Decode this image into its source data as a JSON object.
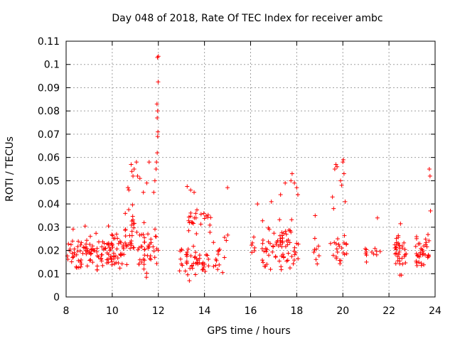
{
  "chart_data": {
    "type": "scatter",
    "title": "Day 048 of 2018, Rate Of TEC Index for receiver ambc",
    "xlabel": "GPS time / hours",
    "ylabel": "ROTI / TECUs",
    "xlim": [
      8,
      24
    ],
    "ylim": [
      0,
      0.11
    ],
    "xticks": [
      8,
      10,
      12,
      14,
      16,
      18,
      20,
      22,
      24
    ],
    "yticks": [
      0,
      0.01,
      0.02,
      0.03,
      0.04,
      0.05,
      0.06,
      0.07,
      0.08,
      0.09,
      0.1,
      0.11
    ],
    "grid": true,
    "marker": "plus",
    "series_color": "#ff0000",
    "clusters": [
      {
        "x": [
          8.05,
          10.55
        ],
        "y": [
          0.006,
          0.033
        ],
        "density": 130
      },
      {
        "x": [
          10.55,
          11.0
        ],
        "y": [
          0.008,
          0.047
        ],
        "density": 28
      },
      {
        "x": [
          11.05,
          12.0
        ],
        "y": [
          0.005,
          0.035
        ],
        "density": 45
      },
      {
        "x": [
          12.9,
          14.05
        ],
        "y": [
          0.005,
          0.025
        ],
        "density": 45
      },
      {
        "x": [
          13.2,
          14.3
        ],
        "y": [
          0.025,
          0.04
        ],
        "density": 25
      },
      {
        "x": [
          14.0,
          15.05
        ],
        "y": [
          0.006,
          0.03
        ],
        "density": 20
      },
      {
        "x": [
          16.0,
          16.25
        ],
        "y": [
          0.015,
          0.03
        ],
        "density": 6
      },
      {
        "x": [
          16.5,
          18.1
        ],
        "y": [
          0.008,
          0.036
        ],
        "density": 75
      },
      {
        "x": [
          18.7,
          19.0
        ],
        "y": [
          0.01,
          0.035
        ],
        "density": 8
      },
      {
        "x": [
          19.4,
          20.2
        ],
        "y": [
          0.01,
          0.03
        ],
        "density": 22
      },
      {
        "x": [
          20.9,
          21.7
        ],
        "y": [
          0.012,
          0.025
        ],
        "density": 12
      },
      {
        "x": [
          22.25,
          22.75
        ],
        "y": [
          0.007,
          0.03
        ],
        "density": 35
      },
      {
        "x": [
          23.15,
          23.8
        ],
        "y": [
          0.01,
          0.03
        ],
        "density": 35
      }
    ],
    "points": [
      {
        "x": 10.68,
        "y": 0.047
      },
      {
        "x": 10.72,
        "y": 0.046
      },
      {
        "x": 10.82,
        "y": 0.057
      },
      {
        "x": 10.85,
        "y": 0.054
      },
      {
        "x": 10.9,
        "y": 0.052
      },
      {
        "x": 10.95,
        "y": 0.055
      },
      {
        "x": 11.05,
        "y": 0.058
      },
      {
        "x": 11.1,
        "y": 0.052
      },
      {
        "x": 11.2,
        "y": 0.051
      },
      {
        "x": 11.35,
        "y": 0.045
      },
      {
        "x": 11.5,
        "y": 0.049
      },
      {
        "x": 11.6,
        "y": 0.058
      },
      {
        "x": 11.8,
        "y": 0.045
      },
      {
        "x": 11.85,
        "y": 0.05
      },
      {
        "x": 11.9,
        "y": 0.055
      },
      {
        "x": 11.92,
        "y": 0.058
      },
      {
        "x": 11.95,
        "y": 0.062
      },
      {
        "x": 11.97,
        "y": 0.069
      },
      {
        "x": 11.98,
        "y": 0.071
      },
      {
        "x": 11.95,
        "y": 0.077
      },
      {
        "x": 11.97,
        "y": 0.08
      },
      {
        "x": 11.94,
        "y": 0.083
      },
      {
        "x": 11.99,
        "y": 0.0925
      },
      {
        "x": 11.96,
        "y": 0.103
      },
      {
        "x": 12.0,
        "y": 0.1035
      },
      {
        "x": 13.25,
        "y": 0.0475
      },
      {
        "x": 13.4,
        "y": 0.046
      },
      {
        "x": 13.55,
        "y": 0.045
      },
      {
        "x": 15.0,
        "y": 0.047
      },
      {
        "x": 16.3,
        "y": 0.04
      },
      {
        "x": 16.9,
        "y": 0.041
      },
      {
        "x": 17.3,
        "y": 0.044
      },
      {
        "x": 17.5,
        "y": 0.049
      },
      {
        "x": 17.75,
        "y": 0.05
      },
      {
        "x": 17.8,
        "y": 0.053
      },
      {
        "x": 17.9,
        "y": 0.049
      },
      {
        "x": 18.0,
        "y": 0.047
      },
      {
        "x": 18.05,
        "y": 0.044
      },
      {
        "x": 18.8,
        "y": 0.035
      },
      {
        "x": 19.55,
        "y": 0.043
      },
      {
        "x": 19.6,
        "y": 0.038
      },
      {
        "x": 19.65,
        "y": 0.055
      },
      {
        "x": 19.7,
        "y": 0.057
      },
      {
        "x": 19.75,
        "y": 0.056
      },
      {
        "x": 19.9,
        "y": 0.05
      },
      {
        "x": 19.95,
        "y": 0.048
      },
      {
        "x": 20.0,
        "y": 0.058
      },
      {
        "x": 20.02,
        "y": 0.059
      },
      {
        "x": 20.05,
        "y": 0.053
      },
      {
        "x": 20.1,
        "y": 0.041
      },
      {
        "x": 21.5,
        "y": 0.034
      },
      {
        "x": 22.5,
        "y": 0.0315
      },
      {
        "x": 23.75,
        "y": 0.055
      },
      {
        "x": 23.78,
        "y": 0.052
      },
      {
        "x": 23.8,
        "y": 0.037
      }
    ]
  }
}
